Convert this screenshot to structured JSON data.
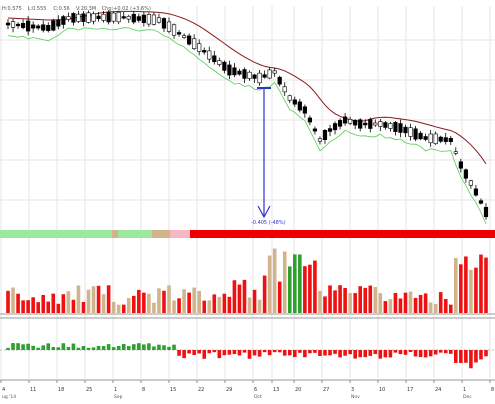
{
  "header": {
    "items": [
      "H:0.575",
      "L:0.555",
      "C:0.56",
      "V:20.3M",
      "Chg:+0.02 (+3.6%)"
    ]
  },
  "measure": {
    "label": "-0.405 (-48%)"
  },
  "colors": {
    "up": "#2ea02e",
    "down": "#ee1111",
    "neutral": "#d2b48c",
    "ma_line": "#8b1a1a",
    "band_line": "#55cc55",
    "measure": "#3333cc",
    "background": "#ffffff",
    "grid": "#e6e6e6",
    "sentiment_up": "#9ce89c",
    "sentiment_down": "#ee0000",
    "sentiment_neutral": "#d2b48c",
    "sentiment_pink": "#f5b8c4"
  },
  "chart_data": [
    {
      "type": "candlestick",
      "title": "",
      "ma_line": true,
      "support_band": true,
      "grid": true
    },
    {
      "type": "bar",
      "title": "",
      "note": "volume"
    },
    {
      "type": "bar",
      "title": "",
      "note": "oscillator"
    }
  ],
  "x_axis": {
    "ticks": [
      {
        "label": "4",
        "sub": "ug '14"
      },
      {
        "label": "11",
        "sub": ""
      },
      {
        "label": "18",
        "sub": ""
      },
      {
        "label": "25",
        "sub": ""
      },
      {
        "label": "1",
        "sub": "Sep"
      },
      {
        "label": "8",
        "sub": ""
      },
      {
        "label": "15",
        "sub": ""
      },
      {
        "label": "22",
        "sub": ""
      },
      {
        "label": "29",
        "sub": ""
      },
      {
        "label": "6",
        "sub": "Oct"
      },
      {
        "label": "13",
        "sub": ""
      },
      {
        "label": "20",
        "sub": ""
      },
      {
        "label": "27",
        "sub": ""
      },
      {
        "label": "3",
        "sub": "Nov"
      },
      {
        "label": "10",
        "sub": ""
      },
      {
        "label": "17",
        "sub": ""
      },
      {
        "label": "24",
        "sub": ""
      },
      {
        "label": "1",
        "sub": "Dec"
      },
      {
        "label": "8",
        "sub": ""
      }
    ]
  }
}
